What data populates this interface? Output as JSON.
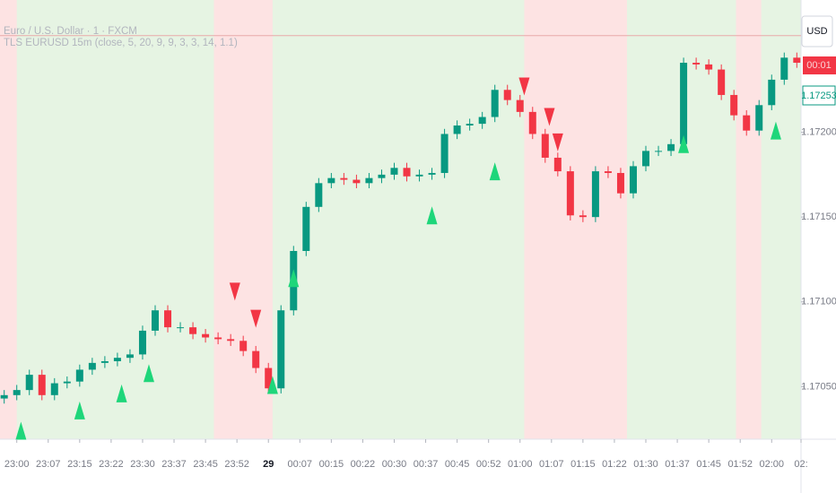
{
  "chart_data": {
    "type": "candlestick",
    "title": "Euro / U.S. Dollar · 1 · FXCM",
    "subtitle": "TLS EURUSD 15m (close, 5, 20, 9, 9, 3, 3, 14, 1.1)",
    "currency": "USD",
    "price_badges": [
      "00:01",
      "1.17253"
    ],
    "x": [
      -3,
      0,
      3,
      6,
      9,
      12,
      15,
      18,
      21,
      24,
      27,
      30,
      33,
      36,
      39,
      42,
      45,
      48,
      51,
      54,
      57,
      60,
      63,
      66,
      69,
      72,
      75,
      78,
      81,
      84,
      87,
      90,
      93,
      96,
      99,
      102,
      105,
      108,
      111,
      114,
      117,
      120,
      123,
      126,
      129,
      132,
      135,
      138,
      141,
      144,
      147,
      150,
      153,
      156,
      159,
      162,
      165,
      168,
      171,
      174,
      177,
      180,
      183,
      186
    ],
    "open": [
      1.17043,
      1.17045,
      1.17048,
      1.17057,
      1.17045,
      1.17052,
      1.17053,
      1.1706,
      1.17064,
      1.17065,
      1.17067,
      1.17069,
      1.17083,
      1.17095,
      1.17085,
      1.17085,
      1.17081,
      1.17079,
      1.17078,
      1.17077,
      1.17071,
      1.17061,
      1.17049,
      1.17095,
      1.1713,
      1.17156,
      1.1717,
      1.17173,
      1.17172,
      1.1717,
      1.17173,
      1.17175,
      1.17179,
      1.17174,
      1.17175,
      1.17176,
      1.17199,
      1.17204,
      1.17205,
      1.17209,
      1.17225,
      1.17219,
      1.17212,
      1.17199,
      1.17185,
      1.17177,
      1.17151,
      1.1715,
      1.17177,
      1.17176,
      1.17164,
      1.1718,
      1.17189,
      1.17189,
      1.17193,
      1.17241,
      1.1724,
      1.17237,
      1.17222,
      1.1721,
      1.17201,
      1.17216,
      1.17231,
      1.17244
    ],
    "high": [
      1.17048,
      1.17051,
      1.1706,
      1.1706,
      1.17055,
      1.17056,
      1.17063,
      1.17067,
      1.17068,
      1.1707,
      1.17072,
      1.17086,
      1.17098,
      1.17098,
      1.17088,
      1.17088,
      1.17084,
      1.17082,
      1.17081,
      1.1708,
      1.17074,
      1.17064,
      1.17098,
      1.17133,
      1.17159,
      1.17173,
      1.17176,
      1.17176,
      1.17175,
      1.17176,
      1.17178,
      1.17182,
      1.17182,
      1.17178,
      1.17179,
      1.17202,
      1.17207,
      1.17208,
      1.17212,
      1.17228,
      1.17228,
      1.17222,
      1.17215,
      1.17202,
      1.17188,
      1.1718,
      1.17154,
      1.1718,
      1.1718,
      1.17179,
      1.17183,
      1.17192,
      1.17192,
      1.17196,
      1.17244,
      1.17244,
      1.17243,
      1.1724,
      1.17225,
      1.17213,
      1.17219,
      1.17234,
      1.17247,
      1.17247
    ],
    "low": [
      1.1704,
      1.17042,
      1.17045,
      1.17042,
      1.17042,
      1.17049,
      1.1705,
      1.17057,
      1.17061,
      1.17062,
      1.17064,
      1.17066,
      1.1708,
      1.17082,
      1.17082,
      1.17078,
      1.17076,
      1.17075,
      1.17074,
      1.17068,
      1.17058,
      1.17046,
      1.17046,
      1.17092,
      1.17127,
      1.17153,
      1.17167,
      1.17169,
      1.17167,
      1.17167,
      1.1717,
      1.17172,
      1.17171,
      1.17171,
      1.17172,
      1.17173,
      1.17196,
      1.17201,
      1.17202,
      1.17206,
      1.17216,
      1.17209,
      1.17196,
      1.17182,
      1.17174,
      1.17148,
      1.17147,
      1.17147,
      1.17173,
      1.17161,
      1.17161,
      1.17177,
      1.17186,
      1.17186,
      1.1719,
      1.17237,
      1.17234,
      1.17219,
      1.17207,
      1.17198,
      1.17198,
      1.17213,
      1.17228,
      1.17238
    ],
    "close": [
      1.17045,
      1.17048,
      1.17057,
      1.17045,
      1.17052,
      1.17053,
      1.1706,
      1.17064,
      1.17065,
      1.17067,
      1.17069,
      1.17083,
      1.17095,
      1.17085,
      1.17085,
      1.17081,
      1.17079,
      1.17078,
      1.17077,
      1.17071,
      1.17061,
      1.17049,
      1.17095,
      1.1713,
      1.17156,
      1.1717,
      1.17173,
      1.17172,
      1.1717,
      1.17173,
      1.17175,
      1.17179,
      1.17174,
      1.17175,
      1.17176,
      1.17199,
      1.17204,
      1.17205,
      1.17209,
      1.17225,
      1.17219,
      1.17212,
      1.17199,
      1.17185,
      1.17177,
      1.17151,
      1.1715,
      1.17177,
      1.17176,
      1.17164,
      1.1718,
      1.17189,
      1.17189,
      1.17193,
      1.17241,
      1.1724,
      1.17237,
      1.17222,
      1.1721,
      1.17201,
      1.17216,
      1.17231,
      1.17244,
      1.17241
    ],
    "up_color": "#089981",
    "down_color": "#f23645",
    "buy_signals": {
      "color": "#1ed67a",
      "x": [
        1,
        15,
        25,
        31.5,
        61,
        66,
        99,
        114,
        159,
        181
      ],
      "price": [
        1.17024,
        1.17036,
        1.17046,
        1.17058,
        1.17051,
        1.17114,
        1.17151,
        1.17177,
        1.17193,
        1.17201
      ]
    },
    "sell_signals": {
      "color": "#f23645",
      "x": [
        52,
        57,
        121,
        127,
        129
      ],
      "price": [
        1.17106,
        1.1709,
        1.17227,
        1.17209,
        1.17194
      ]
    },
    "bull_background": "#e6f4e3",
    "bear_background": "#fde3e3",
    "bear_zones": [
      [
        -4,
        0
      ],
      [
        47,
        61
      ],
      [
        121,
        145.5
      ],
      [
        171.5,
        177.5
      ]
    ],
    "price_line": 1.17257,
    "xlim": [
      -4,
      187
    ],
    "ylim": [
      1.17019,
      1.17278
    ],
    "xticks": [
      {
        "value": 0,
        "label": "23:00"
      },
      {
        "value": 7.5,
        "label": "23:07"
      },
      {
        "value": 15,
        "label": "23:15"
      },
      {
        "value": 22.5,
        "label": "23:22"
      },
      {
        "value": 30,
        "label": "23:30"
      },
      {
        "value": 37.5,
        "label": "23:37"
      },
      {
        "value": 45,
        "label": "23:45"
      },
      {
        "value": 52.5,
        "label": "23:52"
      },
      {
        "value": 60,
        "label": "29"
      },
      {
        "value": 67.5,
        "label": "00:07"
      },
      {
        "value": 75,
        "label": "00:15"
      },
      {
        "value": 82.5,
        "label": "00:22"
      },
      {
        "value": 90,
        "label": "00:30"
      },
      {
        "value": 97.5,
        "label": "00:37"
      },
      {
        "value": 105,
        "label": "00:45"
      },
      {
        "value": 112.5,
        "label": "00:52"
      },
      {
        "value": 120,
        "label": "01:00"
      },
      {
        "value": 127.5,
        "label": "01:07"
      },
      {
        "value": 135,
        "label": "01:15"
      },
      {
        "value": 142.5,
        "label": "01:22"
      },
      {
        "value": 150,
        "label": "01:30"
      },
      {
        "value": 157.5,
        "label": "01:37"
      },
      {
        "value": 165,
        "label": "01:45"
      },
      {
        "value": 172.5,
        "label": "01:52"
      },
      {
        "value": 180,
        "label": "02:00"
      },
      {
        "value": 187,
        "label": "02:"
      }
    ],
    "yticks": [
      {
        "value": 1.1705,
        "label": "1.17050"
      },
      {
        "value": 1.171,
        "label": "1.17100"
      },
      {
        "value": 1.1715,
        "label": "1.17150"
      },
      {
        "value": 1.172,
        "label": "1.17200"
      }
    ]
  }
}
